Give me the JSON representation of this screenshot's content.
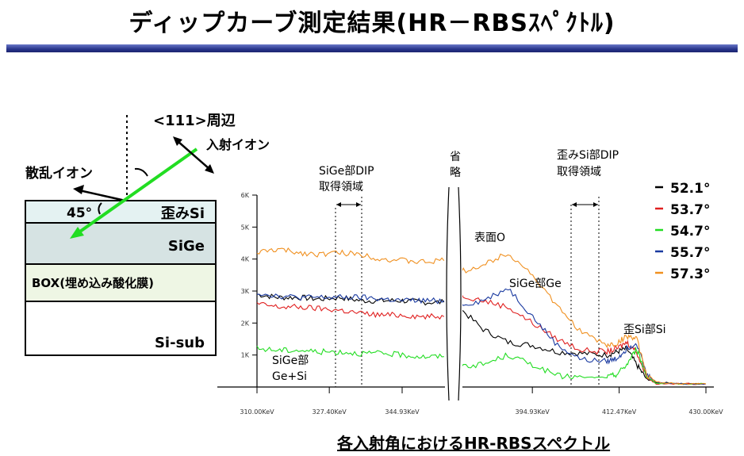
{
  "title": "ディップカーブ測定結果(HR－RBSｽﾍﾟｸﾄﾙ)",
  "caption": "各入射角におけるHR-RBSスペクトル",
  "diagram": {
    "direction_label": "<111>周辺",
    "incident_label": "入射イオン",
    "scattered_label": "散乱イオン",
    "angle_label": "45°",
    "layers": [
      {
        "label": "歪みSi",
        "fill": "#e4f2f2"
      },
      {
        "label": "SiGe",
        "fill": "#d6e3e3"
      },
      {
        "label": "BOX(埋め込み酸化膜)",
        "fill": "#eef6e4"
      },
      {
        "label": "Si-sub",
        "fill": "#ffffff"
      }
    ]
  },
  "annotations": {
    "sige_dip_region": "SiGe部DIP\n取得領域",
    "strained_si_dip_region": "歪みSi部DIP\n取得領域",
    "omitted": "省\n略",
    "surface_o": "表面O",
    "sige_ge": "SiGe部Ge",
    "strained_si_si": "歪Si部Si",
    "sige_gesi": "SiGe部\nGe+Si"
  },
  "chart_data": {
    "type": "line",
    "title": "",
    "xlabel": "",
    "ylabel": "",
    "ylim": [
      0,
      6000
    ],
    "y_ticks": [
      "1K",
      "2K",
      "3K",
      "4K",
      "5K",
      "6K"
    ],
    "x_tick_labels": [
      "310.00KeV",
      "327.40KeV",
      "344.93KeV",
      "394.93KeV",
      "412.47KeV",
      "430.00KeV"
    ],
    "axis_break": "between 344.93KeV and 394.93KeV",
    "x": [
      310,
      315,
      320,
      325,
      330,
      335,
      340,
      345,
      350,
      355,
      380,
      385,
      390,
      395,
      400,
      405,
      410,
      412,
      414,
      416,
      418,
      420,
      425,
      430
    ],
    "series": [
      {
        "name": "52.1°",
        "color": "#000000",
        "values": [
          2900,
          2800,
          2800,
          2750,
          2800,
          2700,
          2700,
          2700,
          2650,
          2650,
          2500,
          1800,
          1400,
          1300,
          1100,
          1050,
          1000,
          1100,
          1200,
          700,
          250,
          150,
          100,
          100
        ]
      },
      {
        "name": "53.7°",
        "color": "#e02020",
        "values": [
          2600,
          2500,
          2500,
          2450,
          2400,
          2300,
          2250,
          2250,
          2200,
          2200,
          2900,
          2700,
          2500,
          2000,
          1500,
          1150,
          1100,
          1200,
          1400,
          1100,
          300,
          100,
          100,
          100
        ]
      },
      {
        "name": "54.7°",
        "color": "#22dd22",
        "values": [
          1200,
          1150,
          1150,
          1100,
          1100,
          1050,
          1050,
          1000,
          950,
          950,
          650,
          700,
          1000,
          700,
          350,
          300,
          300,
          400,
          700,
          1200,
          350,
          100,
          100,
          100
        ]
      },
      {
        "name": "55.7°",
        "color": "#1a3aa0",
        "values": [
          2950,
          2850,
          2800,
          2800,
          2800,
          2800,
          2750,
          2700,
          2700,
          2700,
          2550,
          2700,
          3100,
          2200,
          1300,
          850,
          800,
          900,
          1200,
          1400,
          400,
          150,
          100,
          100
        ]
      },
      {
        "name": "57.3°",
        "color": "#f09020",
        "values": [
          4200,
          4300,
          4200,
          4150,
          4200,
          4150,
          4000,
          3950,
          3900,
          3950,
          3600,
          3800,
          4200,
          3500,
          2500,
          1700,
          1300,
          1350,
          1600,
          1500,
          400,
          150,
          100,
          100
        ]
      }
    ],
    "legend_position": "right"
  }
}
